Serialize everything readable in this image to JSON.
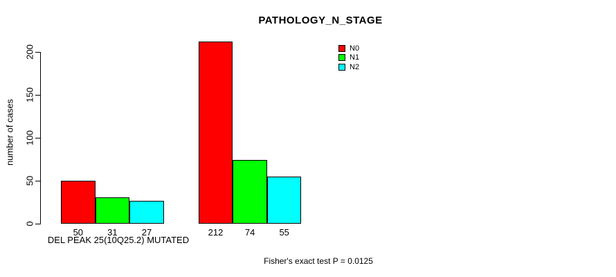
{
  "chart_data": {
    "type": "bar",
    "title": "PATHOLOGY_N_STAGE",
    "ylabel": "number of cases",
    "xlabel": "",
    "yticks": [
      0,
      50,
      100,
      150,
      200
    ],
    "ylim": [
      0,
      215
    ],
    "grid": false,
    "legend_position": "top-right",
    "categories": [
      "DEL PEAK 25(10Q25.2) MUTATED",
      ""
    ],
    "series": [
      {
        "name": "N0",
        "color": "#FF0000",
        "values": [
          50,
          212
        ]
      },
      {
        "name": "N1",
        "color": "#00FF00",
        "values": [
          31,
          74
        ]
      },
      {
        "name": "N2",
        "color": "#00FFFF",
        "values": [
          27,
          55
        ]
      }
    ],
    "annotation": "Fisher's exact test P = 0.0125"
  }
}
